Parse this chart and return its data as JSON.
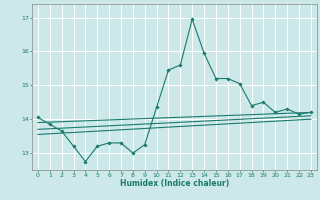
{
  "xlabel": "Humidex (Indice chaleur)",
  "bg_color": "#cce8e8",
  "grid_color": "#ffffff",
  "line_color": "#1a7a6e",
  "xlim": [
    -0.5,
    23.5
  ],
  "ylim": [
    12.5,
    17.4
  ],
  "yticks": [
    13,
    14,
    15,
    16,
    17
  ],
  "xticks": [
    0,
    1,
    2,
    3,
    4,
    5,
    6,
    7,
    8,
    9,
    10,
    11,
    12,
    13,
    14,
    15,
    16,
    17,
    18,
    19,
    20,
    21,
    22,
    23
  ],
  "line1_x": [
    0,
    1,
    2,
    3,
    4,
    5,
    6,
    7,
    8,
    9,
    10,
    11,
    12,
    13,
    14,
    15,
    16,
    17,
    18,
    19,
    20,
    21,
    22,
    23
  ],
  "line1_y": [
    14.05,
    13.85,
    13.65,
    13.2,
    12.75,
    13.2,
    13.3,
    13.3,
    13.0,
    13.25,
    14.35,
    15.45,
    15.6,
    16.95,
    15.95,
    15.2,
    15.2,
    15.05,
    14.4,
    14.5,
    14.2,
    14.3,
    14.15,
    14.2
  ],
  "line2_x": [
    0,
    23
  ],
  "line2_y": [
    13.9,
    14.2
  ],
  "line3_x": [
    0,
    23
  ],
  "line3_y": [
    13.7,
    14.1
  ],
  "line4_x": [
    0,
    23
  ],
  "line4_y": [
    13.55,
    14.0
  ]
}
